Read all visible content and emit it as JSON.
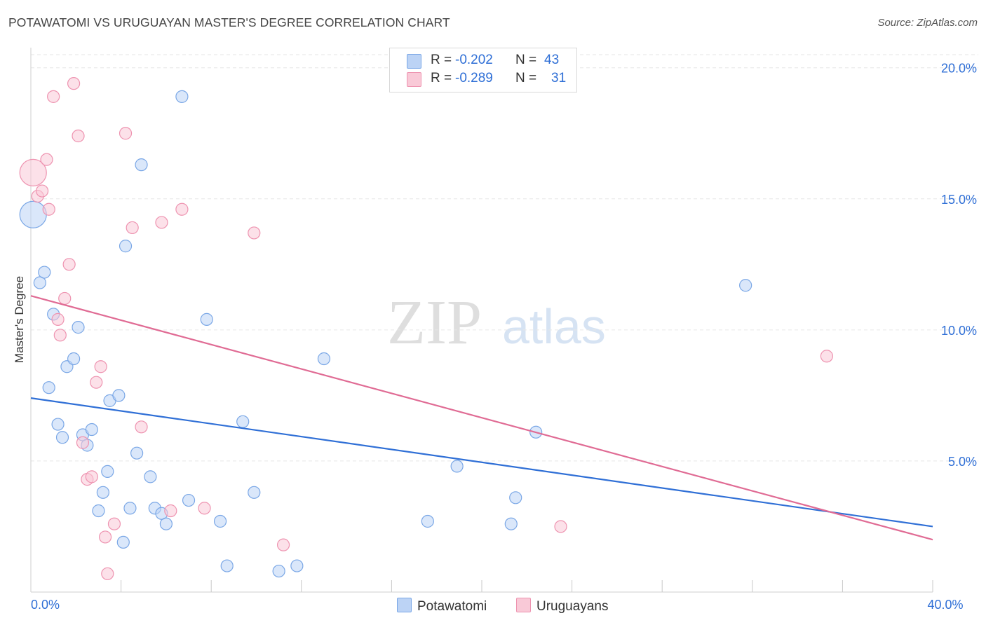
{
  "title": "POTAWATOMI VS URUGUAYAN MASTER'S DEGREE CORRELATION CHART",
  "source": "Source: ZipAtlas.com",
  "watermark": {
    "zip": "ZIP",
    "atlas": "atlas"
  },
  "legend": {
    "rows": [
      {
        "swatch_fill": "#bcd3f5",
        "swatch_stroke": "#7aa7e6",
        "r_label": "R =",
        "r_value": "-0.202",
        "n_label": "N =",
        "n_value": "43"
      },
      {
        "swatch_fill": "#f9c9d7",
        "swatch_stroke": "#ee93b0",
        "r_label": "R =",
        "r_value": "-0.289",
        "n_label": "N =",
        "n_value": "31"
      }
    ]
  },
  "bottom_legend": [
    {
      "label": "Potawatomi",
      "fill": "#bcd3f5",
      "stroke": "#7aa7e6"
    },
    {
      "label": "Uruguayans",
      "fill": "#f9c9d7",
      "stroke": "#ee93b0"
    }
  ],
  "chart_data": {
    "type": "scatter",
    "title": "POTAWATOMI VS URUGUAYAN MASTER'S DEGREE CORRELATION CHART",
    "xlabel": "",
    "ylabel": "Master's Degree",
    "xlim": [
      0,
      40
    ],
    "ylim": [
      0,
      20.5
    ],
    "x_tick_labels": [
      {
        "value": 0,
        "label": "0.0%"
      },
      {
        "value": 40,
        "label": "40.0%"
      }
    ],
    "x_minor_ticks": [
      4,
      8,
      12,
      16,
      20,
      24,
      28,
      32,
      36
    ],
    "y_ticks": [
      {
        "value": 5,
        "label": "5.0%"
      },
      {
        "value": 10,
        "label": "10.0%"
      },
      {
        "value": 15,
        "label": "15.0%"
      },
      {
        "value": 20,
        "label": "20.0%"
      }
    ],
    "grid": "horizontal dashed",
    "series": [
      {
        "name": "Potawatomi",
        "color": "#2f6fd6",
        "fill": "#bcd3f5",
        "stroke": "#7aa7e6",
        "trend": {
          "x0": 0,
          "y0": 7.4,
          "x1": 40,
          "y1": 2.5
        },
        "points": [
          {
            "x": 0.1,
            "y": 14.4,
            "big": true
          },
          {
            "x": 0.4,
            "y": 11.8
          },
          {
            "x": 0.6,
            "y": 12.2
          },
          {
            "x": 0.8,
            "y": 7.8
          },
          {
            "x": 1.0,
            "y": 10.6
          },
          {
            "x": 1.2,
            "y": 6.4
          },
          {
            "x": 1.4,
            "y": 5.9
          },
          {
            "x": 1.6,
            "y": 8.6
          },
          {
            "x": 1.9,
            "y": 8.9
          },
          {
            "x": 2.1,
            "y": 10.1
          },
          {
            "x": 2.3,
            "y": 6.0
          },
          {
            "x": 2.5,
            "y": 5.6
          },
          {
            "x": 2.7,
            "y": 6.2
          },
          {
            "x": 3.0,
            "y": 3.1
          },
          {
            "x": 3.2,
            "y": 3.8
          },
          {
            "x": 3.4,
            "y": 4.6
          },
          {
            "x": 3.5,
            "y": 7.3
          },
          {
            "x": 3.9,
            "y": 7.5
          },
          {
            "x": 4.1,
            "y": 1.9
          },
          {
            "x": 4.2,
            "y": 13.2
          },
          {
            "x": 4.4,
            "y": 3.2
          },
          {
            "x": 4.7,
            "y": 5.3
          },
          {
            "x": 4.9,
            "y": 16.3
          },
          {
            "x": 5.3,
            "y": 4.4
          },
          {
            "x": 5.5,
            "y": 3.2
          },
          {
            "x": 5.8,
            "y": 3.0
          },
          {
            "x": 6.0,
            "y": 2.6
          },
          {
            "x": 6.7,
            "y": 18.9
          },
          {
            "x": 7.0,
            "y": 3.5
          },
          {
            "x": 7.8,
            "y": 10.4
          },
          {
            "x": 8.4,
            "y": 2.7
          },
          {
            "x": 8.7,
            "y": 1.0
          },
          {
            "x": 9.4,
            "y": 6.5
          },
          {
            "x": 9.9,
            "y": 3.8
          },
          {
            "x": 11.0,
            "y": 0.8
          },
          {
            "x": 11.8,
            "y": 1.0
          },
          {
            "x": 13.0,
            "y": 8.9
          },
          {
            "x": 17.6,
            "y": 2.7
          },
          {
            "x": 18.9,
            "y": 4.8
          },
          {
            "x": 21.3,
            "y": 2.6
          },
          {
            "x": 21.5,
            "y": 3.6
          },
          {
            "x": 22.4,
            "y": 6.1
          },
          {
            "x": 31.7,
            "y": 11.7
          }
        ]
      },
      {
        "name": "Uruguayans",
        "color": "#e06b94",
        "fill": "#f9c9d7",
        "stroke": "#ee93b0",
        "trend": {
          "x0": 0,
          "y0": 11.3,
          "x1": 40,
          "y1": 2.0
        },
        "points": [
          {
            "x": 0.1,
            "y": 16.0,
            "big": true
          },
          {
            "x": 0.3,
            "y": 15.1
          },
          {
            "x": 0.5,
            "y": 15.3
          },
          {
            "x": 0.7,
            "y": 16.5
          },
          {
            "x": 0.8,
            "y": 14.6
          },
          {
            "x": 1.0,
            "y": 18.9
          },
          {
            "x": 1.2,
            "y": 10.4
          },
          {
            "x": 1.3,
            "y": 9.8
          },
          {
            "x": 1.5,
            "y": 11.2
          },
          {
            "x": 1.7,
            "y": 12.5
          },
          {
            "x": 1.9,
            "y": 19.4
          },
          {
            "x": 2.1,
            "y": 17.4
          },
          {
            "x": 2.3,
            "y": 5.7
          },
          {
            "x": 2.5,
            "y": 4.3
          },
          {
            "x": 2.7,
            "y": 4.4
          },
          {
            "x": 2.9,
            "y": 8.0
          },
          {
            "x": 3.1,
            "y": 8.6
          },
          {
            "x": 3.3,
            "y": 2.1
          },
          {
            "x": 3.4,
            "y": 0.7
          },
          {
            "x": 3.7,
            "y": 2.6
          },
          {
            "x": 4.2,
            "y": 17.5
          },
          {
            "x": 4.5,
            "y": 13.9
          },
          {
            "x": 4.9,
            "y": 6.3
          },
          {
            "x": 5.8,
            "y": 14.1
          },
          {
            "x": 6.2,
            "y": 3.1
          },
          {
            "x": 6.7,
            "y": 14.6
          },
          {
            "x": 7.7,
            "y": 3.2
          },
          {
            "x": 9.9,
            "y": 13.7
          },
          {
            "x": 11.2,
            "y": 1.8
          },
          {
            "x": 23.5,
            "y": 2.5
          },
          {
            "x": 35.3,
            "y": 9.0
          }
        ]
      }
    ]
  }
}
